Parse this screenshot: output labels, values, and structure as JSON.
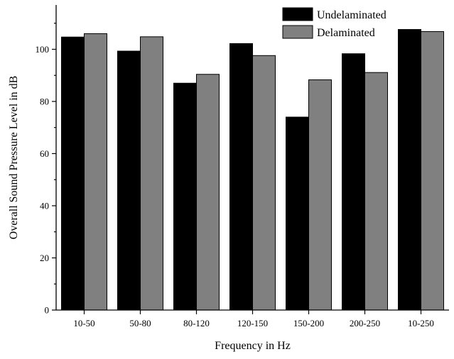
{
  "chart_data": {
    "type": "bar",
    "title": "",
    "xlabel": "Frequency in Hz",
    "ylabel": "Overall Sound Pressure Level in dB",
    "categories": [
      "10-50",
      "50-80",
      "80-120",
      "120-150",
      "150-200",
      "200-250",
      "10-250"
    ],
    "series": [
      {
        "name": "Undelaminated",
        "color": "#000000",
        "values": [
          104.7,
          99.3,
          87.0,
          102.2,
          74.0,
          98.3,
          107.6
        ]
      },
      {
        "name": "Delaminated",
        "color": "#808080",
        "values": [
          106.0,
          104.8,
          90.4,
          97.6,
          88.3,
          91.1,
          106.8
        ]
      }
    ],
    "ylim": [
      0,
      117
    ],
    "yticks": [
      0,
      20,
      40,
      60,
      80,
      100
    ],
    "grid": false,
    "legend_position": "top-right"
  }
}
